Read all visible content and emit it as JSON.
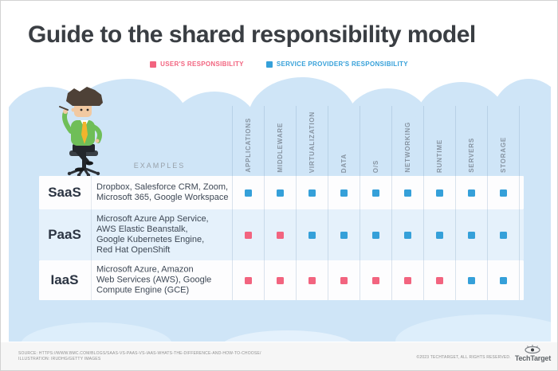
{
  "title": "Guide to the shared responsibility model",
  "legend": {
    "user": {
      "label": "USER'S RESPONSIBILITY",
      "color": "#f2647f"
    },
    "provider": {
      "label": "SERVICE PROVIDER'S RESPONSIBILITY",
      "color": "#35a0d9"
    }
  },
  "table": {
    "examples_header": "EXAMPLES",
    "columns": [
      "APPLICATIONS",
      "MIDDLEWARE",
      "VIRTUALIZATION",
      "DATA",
      "O/S",
      "NETWORKING",
      "RUNTIME",
      "SERVERS",
      "STORAGE"
    ],
    "rows": [
      {
        "model": "SaaS",
        "examples_lines": [
          "Dropbox, Salesforce CRM, Zoom,",
          "Microsoft 365, Google Workspace"
        ],
        "cells": [
          "provider",
          "provider",
          "provider",
          "provider",
          "provider",
          "provider",
          "provider",
          "provider",
          "provider"
        ]
      },
      {
        "model": "PaaS",
        "examples_lines": [
          "Microsoft Azure App Service,",
          "AWS Elastic Beanstalk,",
          "Google Kubernetes Engine,",
          "Red Hat OpenShift"
        ],
        "cells": [
          "user",
          "user",
          "provider",
          "provider",
          "provider",
          "provider",
          "provider",
          "provider",
          "provider"
        ]
      },
      {
        "model": "IaaS",
        "examples_lines": [
          "Microsoft Azure, Amazon",
          "Web Services (AWS), Google",
          "Compute Engine (GCE)"
        ],
        "cells": [
          "user",
          "user",
          "user",
          "user",
          "user",
          "user",
          "user",
          "provider",
          "provider"
        ]
      }
    ]
  },
  "footer": {
    "source_line1": "SOURCE: HTTPS://WWW.BMC.COM/BLOGS/SAAS-VS-PAAS-VS-IAAS-WHATS-THE-DIFFERENCE-AND-HOW-TO-CHOOSE/",
    "source_line2": "ILLUSTRATION: IRUDHG/GETTY IMAGES",
    "copyright": "©2023 TECHTARGET, ALL RIGHTS RESERVED.",
    "brand": "TechTarget"
  }
}
